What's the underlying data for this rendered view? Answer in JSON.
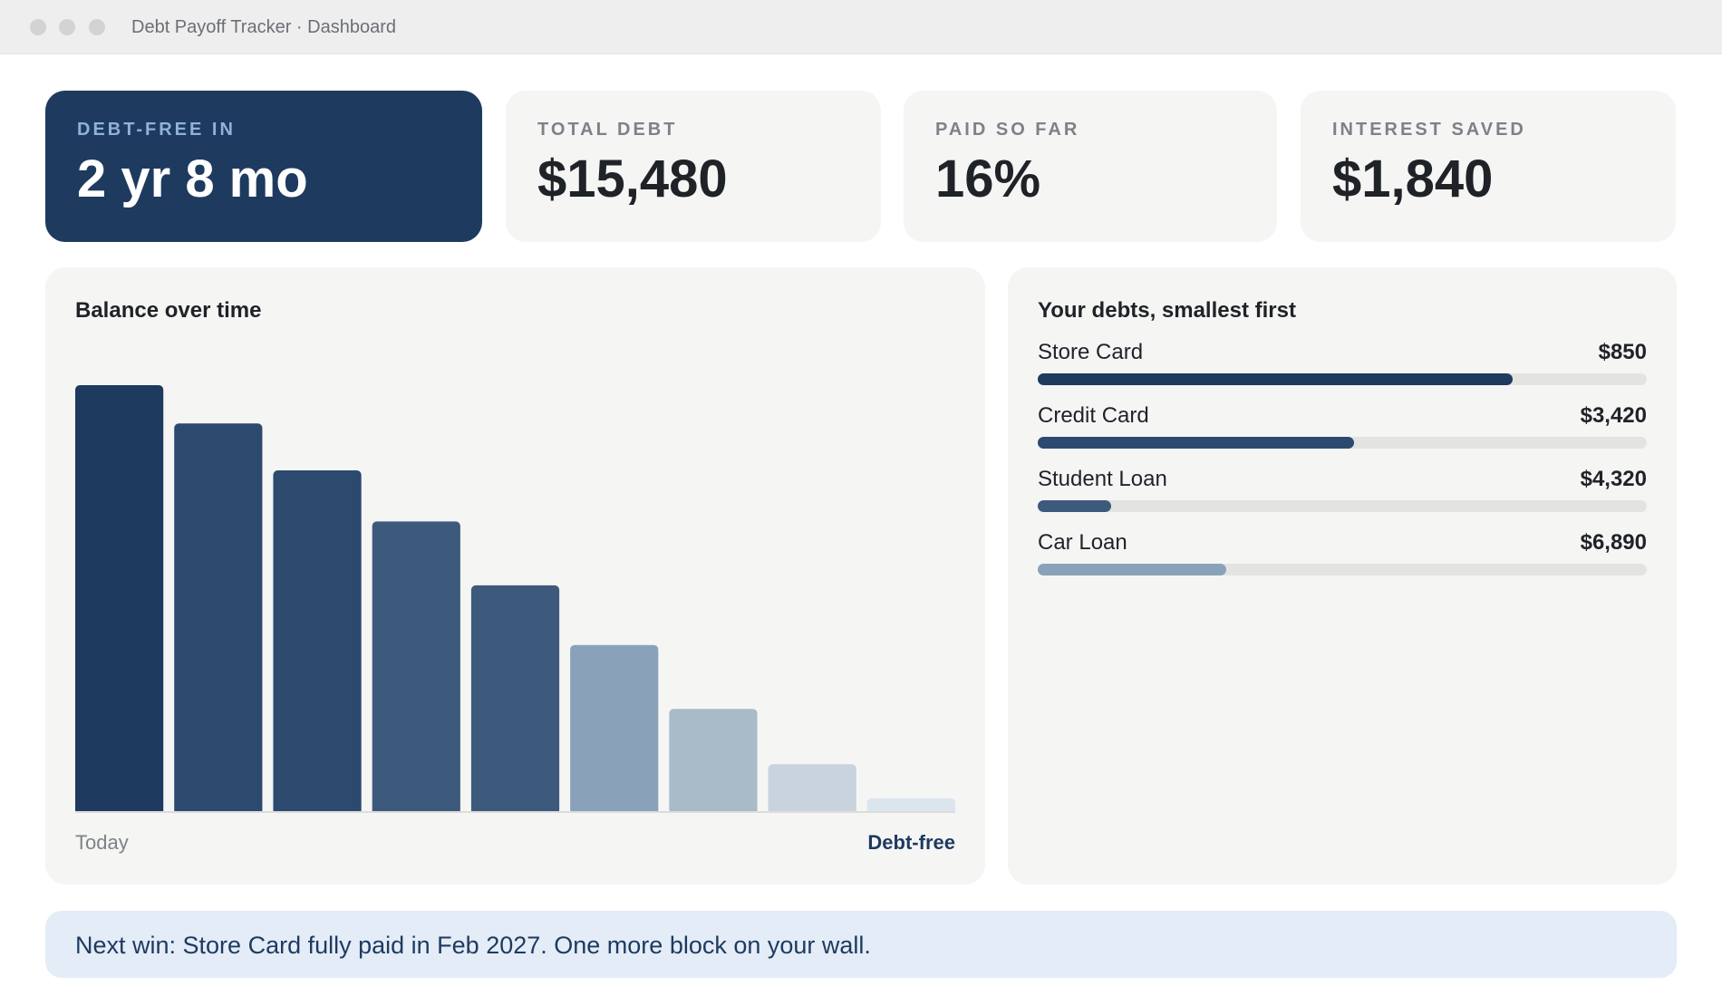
{
  "window": {
    "title": "Debt Payoff Tracker · Dashboard"
  },
  "stats": [
    {
      "label": "DEBT-FREE IN",
      "value": "2 yr 8 mo"
    },
    {
      "label": "TOTAL DEBT",
      "value": "$15,480"
    },
    {
      "label": "PAID SO FAR",
      "value": "16%"
    },
    {
      "label": "INTEREST SAVED",
      "value": "$1,840"
    }
  ],
  "chart": {
    "title": "Balance over time",
    "start_label": "Today",
    "end_label": "Debt-free"
  },
  "chart_data": {
    "type": "bar",
    "values": [
      100,
      91,
      80,
      68,
      53,
      39,
      24,
      11,
      3
    ],
    "ylim": [
      0,
      100
    ],
    "grid": false,
    "colors": [
      "#1e3a5f",
      "#2c4a6e",
      "#2c4a6e",
      "#3d5a7d",
      "#3d5a7d",
      "#8aa2b9",
      "#a9bac9",
      "#c8d3dd",
      "#dbe5ee"
    ],
    "xlabels": [
      "Today",
      "Debt-free"
    ]
  },
  "debts": {
    "title": "Your debts, smallest first",
    "items": [
      {
        "name": "Store Card",
        "amount": "$850",
        "progress": 0.78,
        "color": "#1e3a5f"
      },
      {
        "name": "Credit Card",
        "amount": "$3,420",
        "progress": 0.52,
        "color": "#2c4a6e"
      },
      {
        "name": "Student Loan",
        "amount": "$4,320",
        "progress": 0.12,
        "color": "#3d5a7d"
      },
      {
        "name": "Car Loan",
        "amount": "$6,890",
        "progress": 0.31,
        "color": "#8aa2b9"
      }
    ]
  },
  "banner": {
    "text": "Next win: Store Card fully paid in Feb 2027. One more block on your wall."
  }
}
